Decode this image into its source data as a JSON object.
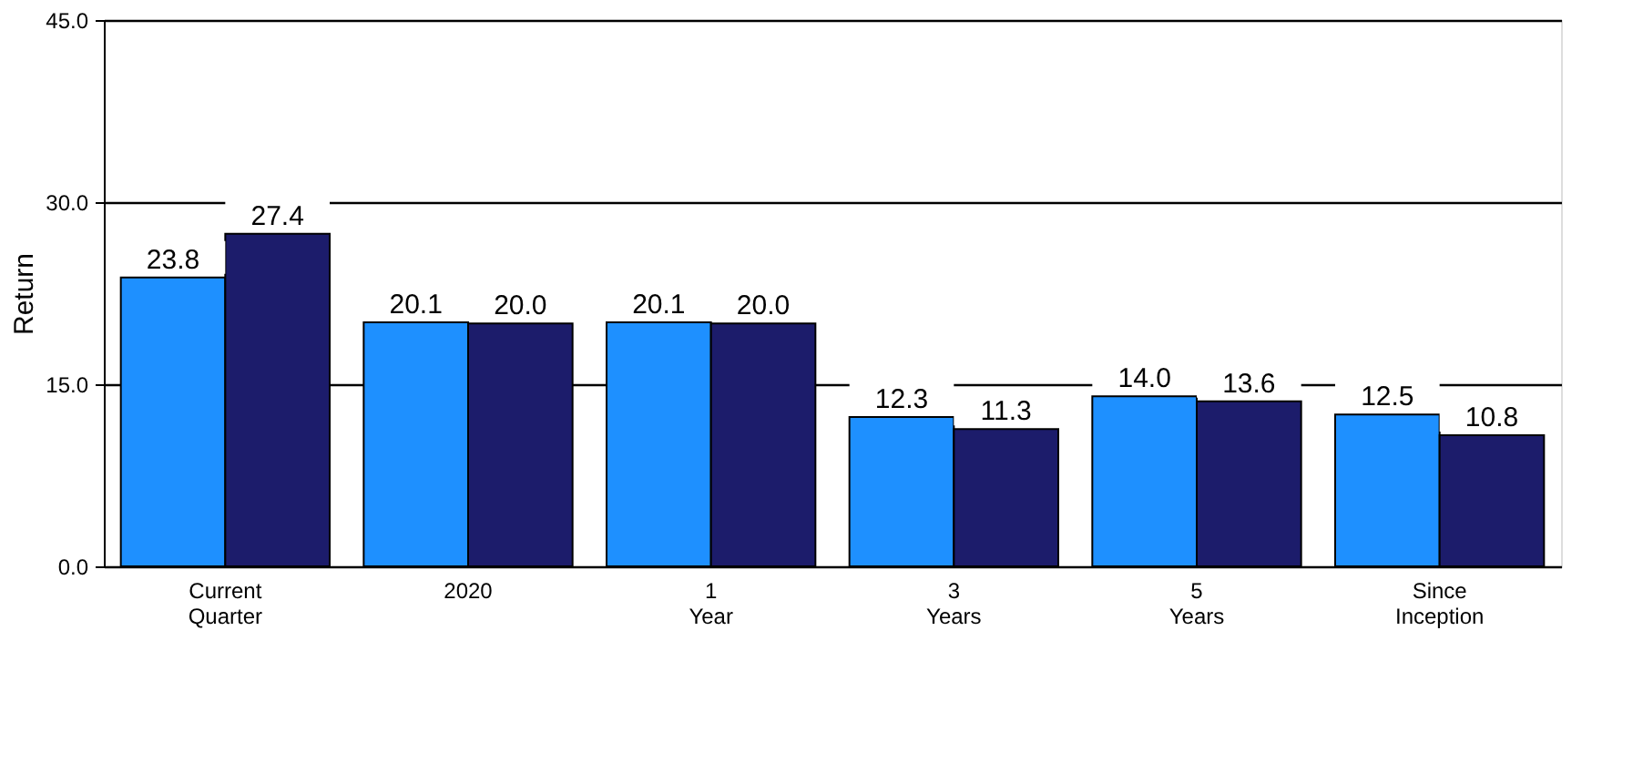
{
  "chart_data": {
    "type": "bar",
    "ylabel": "Return",
    "categories": [
      "Current Quarter",
      "2020",
      "1 Year",
      "3 Years",
      "5 Years",
      "Since Inception"
    ],
    "series": [
      {
        "color": "#1e90ff",
        "values": [
          23.8,
          20.1,
          20.1,
          12.3,
          14.0,
          12.5
        ],
        "value_labels": [
          "23.8",
          "20.1",
          "20.1",
          "12.3",
          "14.0",
          "12.5"
        ]
      },
      {
        "color": "#1c1c6b",
        "values": [
          27.4,
          20.0,
          20.0,
          11.3,
          13.6,
          10.8
        ],
        "value_labels": [
          "27.4",
          "20.0",
          "20.0",
          "11.3",
          "13.6",
          "10.8"
        ]
      }
    ],
    "ylim": [
      0,
      45
    ],
    "yticks": [
      {
        "value": 0,
        "label": "0.0"
      },
      {
        "value": 15,
        "label": "15.0"
      },
      {
        "value": 30,
        "label": "30.0"
      },
      {
        "value": 45,
        "label": "45.0"
      }
    ],
    "grid": "y"
  }
}
